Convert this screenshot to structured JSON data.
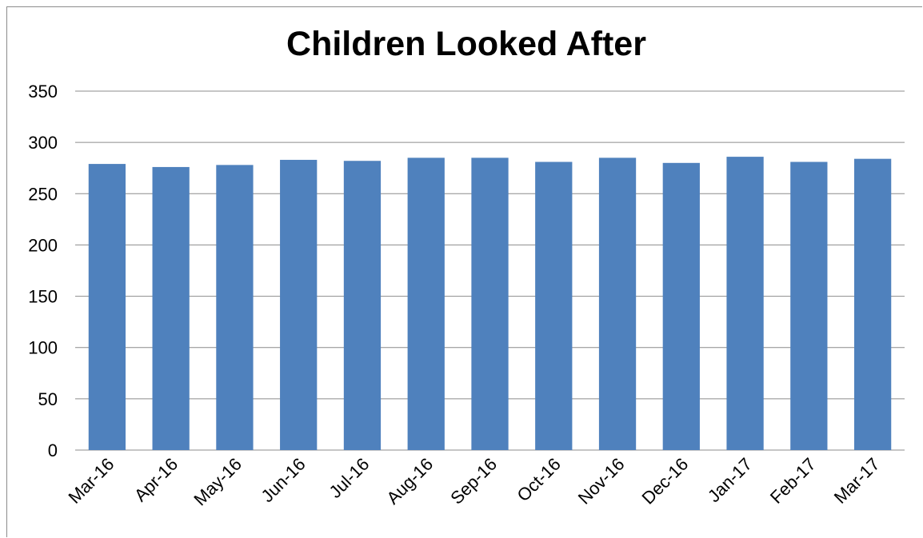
{
  "chart_data": {
    "type": "bar",
    "title": "Children Looked After",
    "xlabel": "",
    "ylabel": "",
    "categories": [
      "Mar-16",
      "Apr-16",
      "May-16",
      "Jun-16",
      "Jul-16",
      "Aug-16",
      "Sep-16",
      "Oct-16",
      "Nov-16",
      "Dec-16",
      "Jan-17",
      "Feb-17",
      "Mar-17"
    ],
    "values": [
      279,
      276,
      278,
      283,
      282,
      285,
      285,
      281,
      285,
      280,
      286,
      281,
      284
    ],
    "ylim": [
      0,
      350
    ],
    "yticks": [
      0,
      50,
      100,
      150,
      200,
      250,
      300,
      350
    ],
    "grid": true,
    "legend": "none",
    "bar_color": "#4f81bd"
  }
}
